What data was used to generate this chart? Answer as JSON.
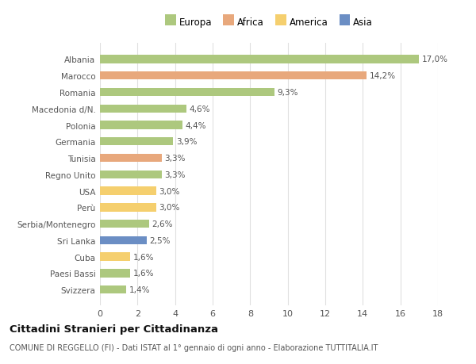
{
  "countries": [
    "Albania",
    "Marocco",
    "Romania",
    "Macedonia d/N.",
    "Polonia",
    "Germania",
    "Tunisia",
    "Regno Unito",
    "USA",
    "Perù",
    "Serbia/Montenegro",
    "Sri Lanka",
    "Cuba",
    "Paesi Bassi",
    "Svizzera"
  ],
  "values": [
    17.0,
    14.2,
    9.3,
    4.6,
    4.4,
    3.9,
    3.3,
    3.3,
    3.0,
    3.0,
    2.6,
    2.5,
    1.6,
    1.6,
    1.4
  ],
  "labels": [
    "17,0%",
    "14,2%",
    "9,3%",
    "4,6%",
    "4,4%",
    "3,9%",
    "3,3%",
    "3,3%",
    "3,0%",
    "3,0%",
    "2,6%",
    "2,5%",
    "1,6%",
    "1,6%",
    "1,4%"
  ],
  "continents": [
    "Europa",
    "Africa",
    "Europa",
    "Europa",
    "Europa",
    "Europa",
    "Africa",
    "Europa",
    "America",
    "America",
    "Europa",
    "Asia",
    "America",
    "Europa",
    "Europa"
  ],
  "colors": {
    "Europa": "#adc87e",
    "Africa": "#e8a87c",
    "America": "#f5cf6e",
    "Asia": "#6b8ec4"
  },
  "legend_order": [
    "Europa",
    "Africa",
    "America",
    "Asia"
  ],
  "title": "Cittadini Stranieri per Cittadinanza",
  "subtitle": "COMUNE DI REGGELLO (FI) - Dati ISTAT al 1° gennaio di ogni anno - Elaborazione TUTTITALIA.IT",
  "xlim": [
    0,
    18
  ],
  "xticks": [
    0,
    2,
    4,
    6,
    8,
    10,
    12,
    14,
    16,
    18
  ],
  "bg_color": "#ffffff",
  "grid_color": "#e0e0e0"
}
